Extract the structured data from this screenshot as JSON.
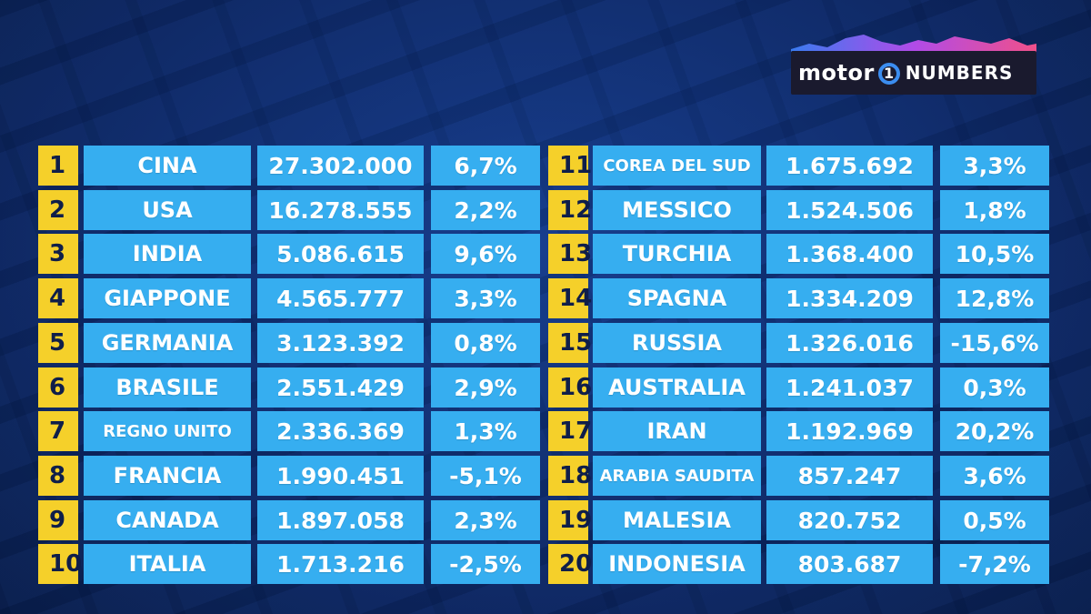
{
  "brand": {
    "part1": "motor",
    "ring": "1",
    "part2": "NUMBERS"
  },
  "left": [
    {
      "rank": "1",
      "country": "CINA",
      "sales": "27.302.000",
      "change": "6,7%"
    },
    {
      "rank": "2",
      "country": "USA",
      "sales": "16.278.555",
      "change": "2,2%"
    },
    {
      "rank": "3",
      "country": "INDIA",
      "sales": "5.086.615",
      "change": "9,6%"
    },
    {
      "rank": "4",
      "country": "GIAPPONE",
      "sales": "4.565.777",
      "change": "3,3%"
    },
    {
      "rank": "5",
      "country": "GERMANIA",
      "sales": "3.123.392",
      "change": "0,8%"
    },
    {
      "rank": "6",
      "country": "BRASILE",
      "sales": "2.551.429",
      "change": "2,9%"
    },
    {
      "rank": "7",
      "country": "REGNO UNITO",
      "sales": "2.336.369",
      "change": "1,3%"
    },
    {
      "rank": "8",
      "country": "FRANCIA",
      "sales": "1.990.451",
      "change": "-5,1%"
    },
    {
      "rank": "9",
      "country": "CANADA",
      "sales": "1.897.058",
      "change": "2,3%"
    },
    {
      "rank": "10",
      "country": "ITALIA",
      "sales": "1.713.216",
      "change": "-2,5%"
    }
  ],
  "right": [
    {
      "rank": "11",
      "country": "COREA DEL SUD",
      "sales": "1.675.692",
      "change": "3,3%"
    },
    {
      "rank": "12",
      "country": "MESSICO",
      "sales": "1.524.506",
      "change": "1,8%"
    },
    {
      "rank": "13",
      "country": "TURCHIA",
      "sales": "1.368.400",
      "change": "10,5%"
    },
    {
      "rank": "14",
      "country": "SPAGNA",
      "sales": "1.334.209",
      "change": "12,8%"
    },
    {
      "rank": "15",
      "country": "RUSSIA",
      "sales": "1.326.016",
      "change": "-15,6%"
    },
    {
      "rank": "16",
      "country": "AUSTRALIA",
      "sales": "1.241.037",
      "change": "0,3%"
    },
    {
      "rank": "17",
      "country": "IRAN",
      "sales": "1.192.969",
      "change": "20,2%"
    },
    {
      "rank": "18",
      "country": "ARABIA SAUDITA",
      "sales": "857.247",
      "change": "3,6%"
    },
    {
      "rank": "19",
      "country": "MALESIA",
      "sales": "820.752",
      "change": "0,5%"
    },
    {
      "rank": "20",
      "country": "INDONESIA",
      "sales": "803.687",
      "change": "-7,2%"
    }
  ]
}
